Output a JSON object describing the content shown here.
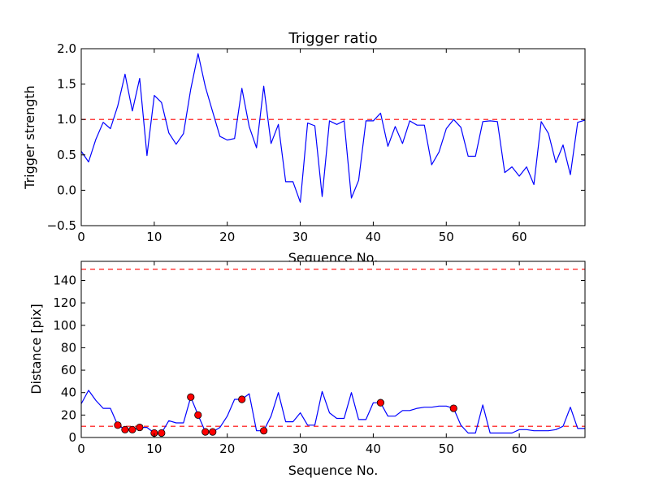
{
  "chart_data": [
    {
      "type": "line",
      "title": "Trigger ratio",
      "xlabel": "Sequence No.",
      "ylabel": "Trigger strength",
      "xlim": [
        0,
        69
      ],
      "ylim": [
        -0.5,
        2.0
      ],
      "xticks": [
        0,
        10,
        20,
        30,
        40,
        50,
        60
      ],
      "xtick_labels": [
        "0",
        "10",
        "20",
        "30",
        "40",
        "50",
        "60"
      ],
      "yticks": [
        -0.5,
        0.0,
        0.5,
        1.0,
        1.5,
        2.0
      ],
      "ytick_labels": [
        "−0.5",
        "0.0",
        "0.5",
        "1.0",
        "1.5",
        "2.0"
      ],
      "series": [
        {
          "name": "trigger strength",
          "color": "#0000ff",
          "x": [
            0,
            1,
            2,
            3,
            4,
            5,
            6,
            7,
            8,
            9,
            10,
            11,
            12,
            13,
            14,
            15,
            16,
            17,
            18,
            19,
            20,
            21,
            22,
            23,
            24,
            25,
            26,
            27,
            28,
            29,
            30,
            31,
            32,
            33,
            34,
            35,
            36,
            37,
            38,
            39,
            40,
            41,
            42,
            43,
            44,
            45,
            46,
            47,
            48,
            49,
            50,
            51,
            52,
            53,
            54,
            55,
            56,
            57,
            58,
            59,
            60,
            61,
            62,
            63,
            64,
            65,
            66,
            67,
            68,
            69
          ],
          "values": [
            0.55,
            0.4,
            0.72,
            0.96,
            0.87,
            1.19,
            1.64,
            1.12,
            1.58,
            0.49,
            1.34,
            1.24,
            0.81,
            0.65,
            0.8,
            1.43,
            1.93,
            1.46,
            1.11,
            0.76,
            0.71,
            0.73,
            1.44,
            0.9,
            0.6,
            1.47,
            0.66,
            0.93,
            0.12,
            0.12,
            -0.17,
            0.95,
            0.91,
            -0.09,
            0.98,
            0.93,
            0.98,
            -0.11,
            0.14,
            0.98,
            0.98,
            1.09,
            0.62,
            0.9,
            0.66,
            0.98,
            0.92,
            0.92,
            0.36,
            0.54,
            0.87,
            1.0,
            0.89,
            0.48,
            0.48,
            0.97,
            0.98,
            0.97,
            0.25,
            0.33,
            0.2,
            0.33,
            0.08,
            0.97,
            0.8,
            0.39,
            0.64,
            0.22,
            0.96,
            0.99
          ]
        }
      ],
      "reference_lines": [
        {
          "y": 1.0,
          "color": "#ff0000",
          "style": "dashed"
        }
      ]
    },
    {
      "type": "line",
      "title": "",
      "xlabel": "Sequence No.",
      "ylabel": "Distance [pix]",
      "xlim": [
        0,
        69
      ],
      "ylim": [
        0,
        157
      ],
      "xticks": [
        0,
        10,
        20,
        30,
        40,
        50,
        60
      ],
      "xtick_labels": [
        "0",
        "10",
        "20",
        "30",
        "40",
        "50",
        "60"
      ],
      "yticks": [
        0,
        20,
        40,
        60,
        80,
        100,
        120,
        140
      ],
      "ytick_labels": [
        "0",
        "20",
        "40",
        "60",
        "80",
        "100",
        "120",
        "140"
      ],
      "series": [
        {
          "name": "distance",
          "color": "#0000ff",
          "x": [
            0,
            1,
            2,
            3,
            4,
            5,
            6,
            7,
            8,
            9,
            10,
            11,
            12,
            13,
            14,
            15,
            16,
            17,
            18,
            19,
            20,
            21,
            22,
            23,
            24,
            25,
            26,
            27,
            28,
            29,
            30,
            31,
            32,
            33,
            34,
            35,
            36,
            37,
            38,
            39,
            40,
            41,
            42,
            43,
            44,
            45,
            46,
            47,
            48,
            49,
            50,
            51,
            52,
            53,
            54,
            55,
            56,
            57,
            58,
            59,
            60,
            61,
            62,
            63,
            64,
            65,
            66,
            67,
            68,
            69
          ],
          "values": [
            30,
            42,
            33,
            26,
            26,
            11,
            7,
            7,
            9,
            9,
            4,
            4,
            15,
            13,
            13,
            36,
            20,
            5,
            5,
            9,
            19,
            34,
            34,
            39,
            6,
            6,
            19,
            40,
            14,
            14,
            22,
            11,
            11,
            41,
            22,
            17,
            17,
            40,
            16,
            16,
            31,
            31,
            19,
            19,
            24,
            24,
            26,
            27,
            27,
            28,
            28,
            26,
            11,
            4,
            4,
            29,
            4,
            4,
            4,
            4,
            7,
            7,
            6,
            6,
            6,
            7,
            10,
            27,
            8,
            8
          ]
        },
        {
          "name": "flagged points",
          "color": "#ff0000",
          "marker": "circle",
          "x": [
            5,
            6,
            7,
            8,
            10,
            11,
            15,
            16,
            17,
            18,
            22,
            25,
            41,
            51
          ],
          "values": [
            11,
            7,
            7,
            9,
            4,
            4,
            36,
            20,
            5,
            5,
            34,
            6,
            31,
            26
          ]
        }
      ],
      "reference_lines": [
        {
          "y": 150,
          "color": "#ff0000",
          "style": "dashed"
        },
        {
          "y": 10,
          "color": "#ff0000",
          "style": "dashed"
        }
      ]
    }
  ]
}
